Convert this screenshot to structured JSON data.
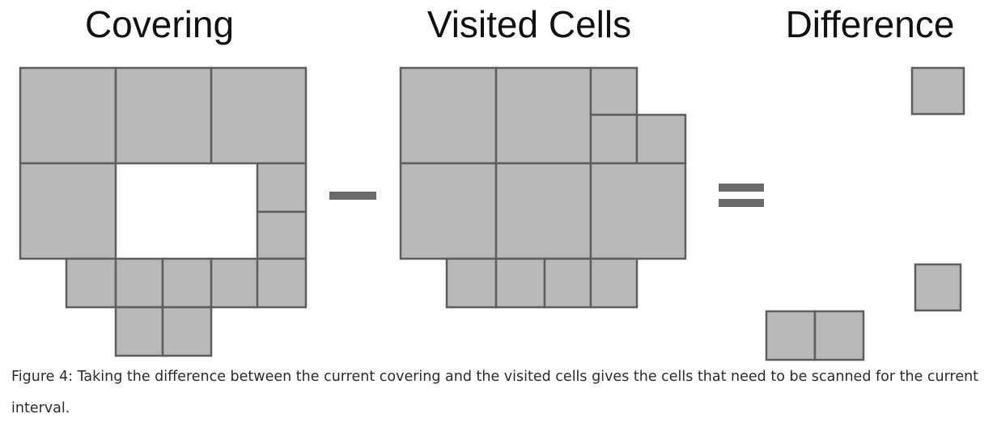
{
  "panels": [
    {
      "id": "covering",
      "title": "Covering"
    },
    {
      "id": "visited",
      "title": "Visited Cells"
    },
    {
      "id": "difference",
      "title": "Difference"
    }
  ],
  "operators": {
    "minus": "minus-sign",
    "equals": "equals-sign"
  },
  "caption": "Figure 4: Taking the difference between the current covering and the visited cells gives the cells that need to be scanned for the current interval.",
  "colors": {
    "cell_fill": "#b9b9b9",
    "cell_stroke": "#5e5e5e",
    "operator": "#6b6b6b"
  }
}
